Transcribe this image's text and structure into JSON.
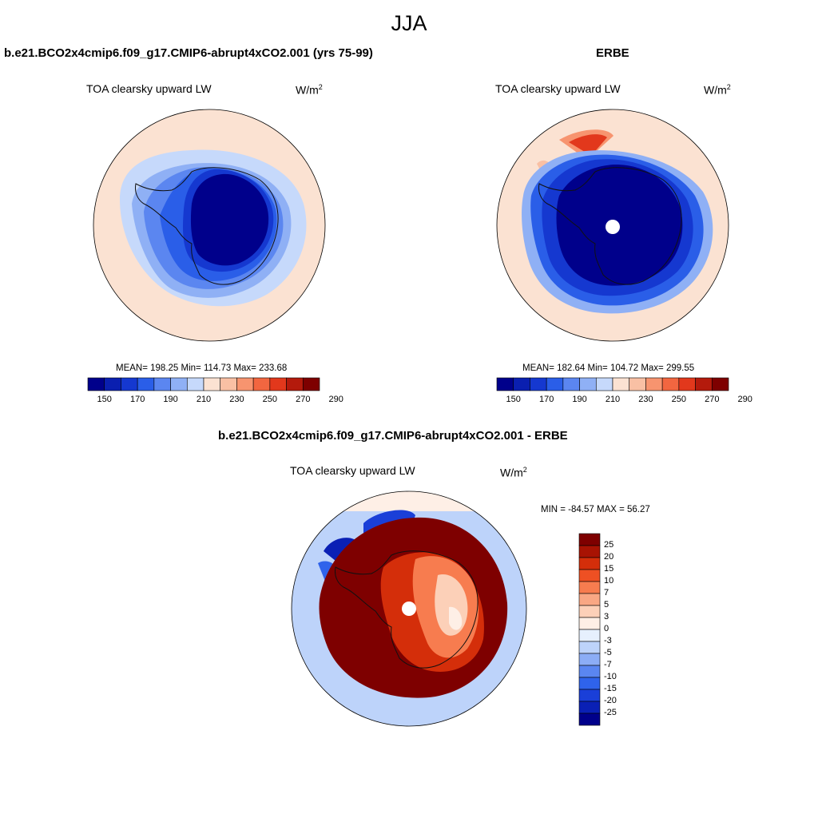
{
  "season": "JJA",
  "variable": "TOA clearsky upward LW",
  "units_base": "W/m",
  "units_exp": "2",
  "palette_abs": [
    "#00008b",
    "#0a1fb0",
    "#1538d0",
    "#2a5ee8",
    "#5b86f0",
    "#8fb0f5",
    "#c6d9fb",
    "#fbe2d2",
    "#f9c0a4",
    "#f7946f",
    "#f26640",
    "#e2381c",
    "#b41a0c",
    "#7e0000"
  ],
  "palette_diff": [
    "#00008b",
    "#0a20b5",
    "#1a3fd8",
    "#2f63eb",
    "#5a86f1",
    "#8cadf6",
    "#bdd3fa",
    "#e6f0fd",
    "#feefe6",
    "#fcd0b8",
    "#f9a784",
    "#f77c4f",
    "#ee5023",
    "#d42e0a",
    "#a81303",
    "#7e0000"
  ],
  "panels": [
    {
      "run_title": "b.e21.BCO2x4cmip6.f09_g17.CMIP6-abrupt4xCO2.001 (yrs 75-99)",
      "stats_label": "MEAN= 198.25  Min= 114.73  Max= 233.68",
      "colorbar_ticks": [
        "150",
        "170",
        "190",
        "210",
        "230",
        "250",
        "270",
        "290"
      ]
    },
    {
      "run_title": "ERBE",
      "stats_label": "MEAN= 182.64  Min= 104.72  Max= 299.55",
      "colorbar_ticks": [
        "150",
        "170",
        "190",
        "210",
        "230",
        "250",
        "270",
        "290"
      ]
    },
    {
      "run_title": "b.e21.BCO2x4cmip6.f09_g17.CMIP6-abrupt4xCO2.001 - ERBE",
      "stats_label": "MIN = -84.57 MAX =  56.27",
      "colorbar_ticks": [
        "25",
        "20",
        "15",
        "10",
        "7",
        "5",
        "3",
        "0",
        "-3",
        "-5",
        "-7",
        "-10",
        "-15",
        "-20",
        "-25"
      ]
    }
  ]
}
